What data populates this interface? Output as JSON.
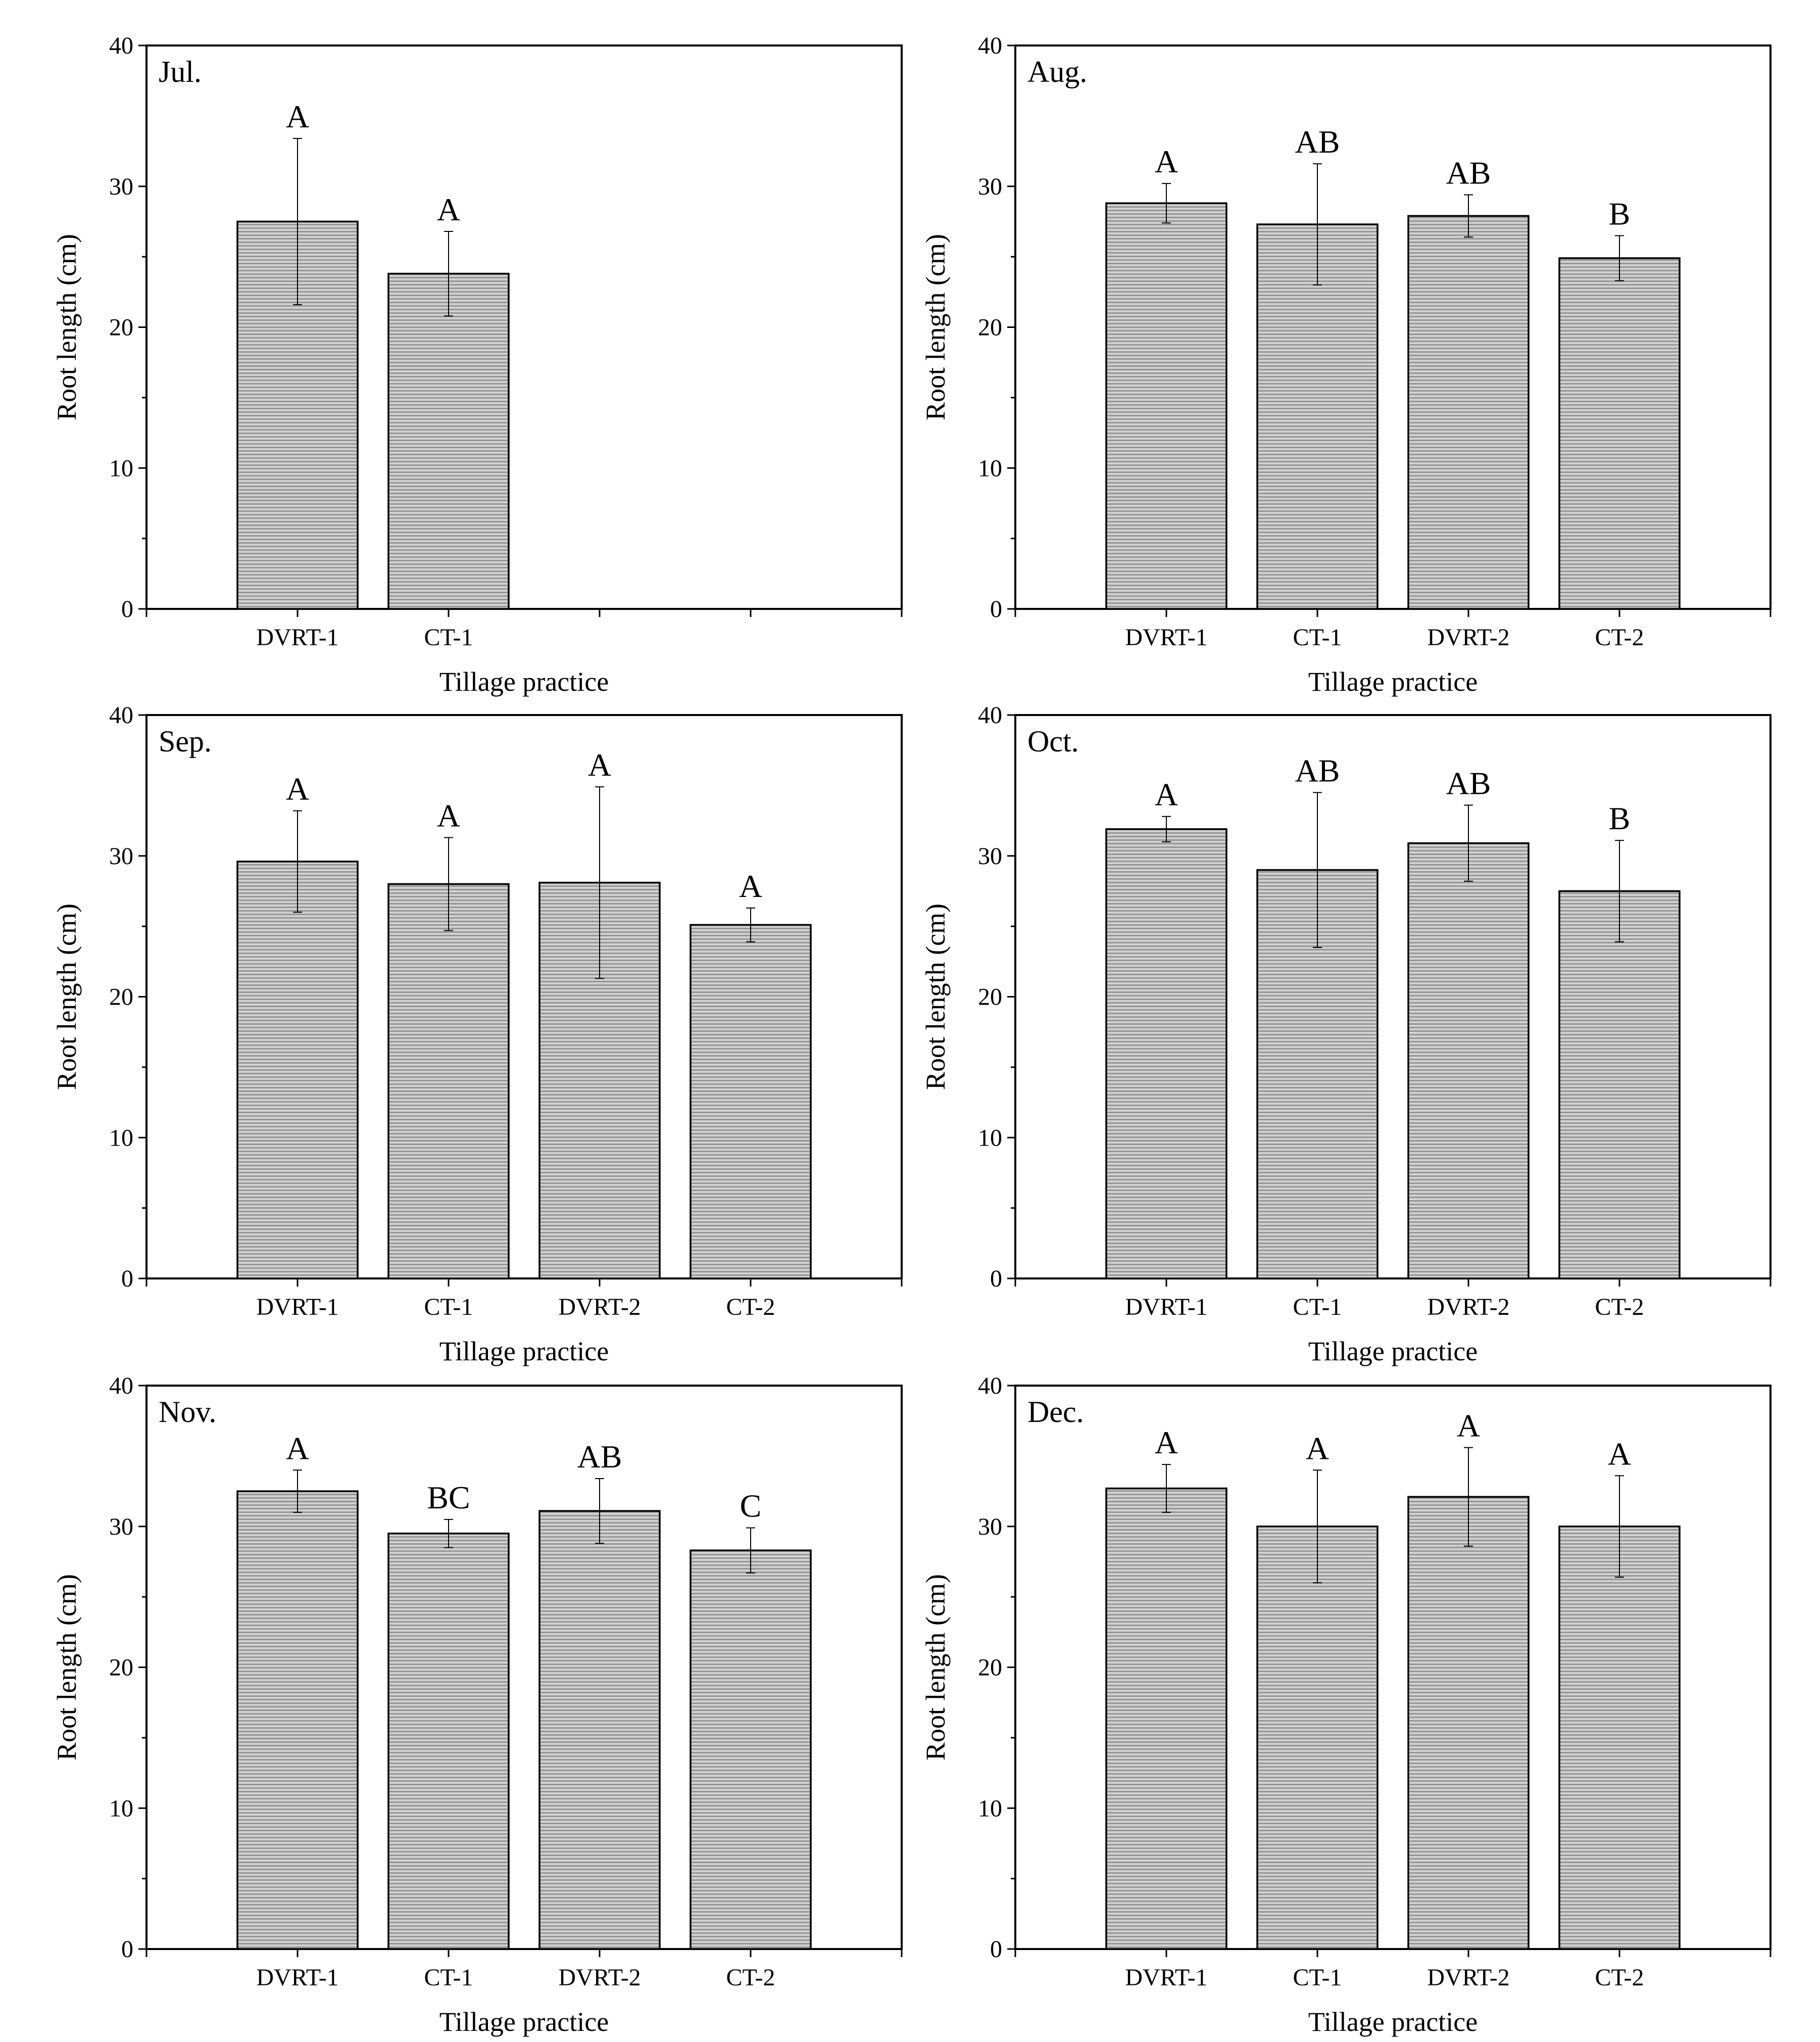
{
  "chart_data": [
    {
      "type": "bar",
      "title": "Jul.",
      "categories": [
        "DVRT-1",
        "CT-1"
      ],
      "values": [
        27.5,
        23.8
      ],
      "errors": [
        5.9,
        3.0
      ],
      "significance": [
        "A",
        "A"
      ],
      "xlabel": "Tillage practice",
      "ylabel": "Root length (cm)",
      "ylim": [
        0,
        40
      ],
      "yticks": [
        "0",
        "10",
        "20",
        "30",
        "40"
      ]
    },
    {
      "type": "bar",
      "title": "Aug.",
      "categories": [
        "DVRT-1",
        "CT-1",
        "DVRT-2",
        "CT-2"
      ],
      "values": [
        28.8,
        27.3,
        27.9,
        24.9
      ],
      "errors": [
        1.4,
        4.3,
        1.5,
        1.6
      ],
      "significance": [
        "A",
        "AB",
        "AB",
        "B"
      ],
      "xlabel": "Tillage practice",
      "ylabel": "Root length (cm)",
      "ylim": [
        0,
        40
      ],
      "yticks": [
        "0",
        "10",
        "20",
        "30",
        "40"
      ]
    },
    {
      "type": "bar",
      "title": "Sep.",
      "categories": [
        "DVRT-1",
        "CT-1",
        "DVRT-2",
        "CT-2"
      ],
      "values": [
        29.6,
        28.0,
        28.1,
        25.1
      ],
      "errors": [
        3.6,
        3.3,
        6.8,
        1.2
      ],
      "significance": [
        "A",
        "A",
        "A",
        "A"
      ],
      "xlabel": "Tillage practice",
      "ylabel": "Root length (cm)",
      "ylim": [
        0,
        40
      ],
      "yticks": [
        "0",
        "10",
        "20",
        "30",
        "40"
      ]
    },
    {
      "type": "bar",
      "title": "Oct.",
      "categories": [
        "DVRT-1",
        "CT-1",
        "DVRT-2",
        "CT-2"
      ],
      "values": [
        31.9,
        29.0,
        30.9,
        27.5
      ],
      "errors": [
        0.9,
        5.5,
        2.7,
        3.6
      ],
      "significance": [
        "A",
        "AB",
        "AB",
        "B"
      ],
      "xlabel": "Tillage practice",
      "ylabel": "Root length (cm)",
      "ylim": [
        0,
        40
      ],
      "yticks": [
        "0",
        "10",
        "20",
        "30",
        "40"
      ]
    },
    {
      "type": "bar",
      "title": "Nov.",
      "categories": [
        "DVRT-1",
        "CT-1",
        "DVRT-2",
        "CT-2"
      ],
      "values": [
        32.5,
        29.5,
        31.1,
        28.3
      ],
      "errors": [
        1.5,
        1.0,
        2.3,
        1.6
      ],
      "significance": [
        "A",
        "BC",
        "AB",
        "C"
      ],
      "xlabel": "Tillage practice",
      "ylabel": "Root length (cm)",
      "ylim": [
        0,
        40
      ],
      "yticks": [
        "0",
        "10",
        "20",
        "30",
        "40"
      ]
    },
    {
      "type": "bar",
      "title": "Dec.",
      "categories": [
        "DVRT-1",
        "CT-1",
        "DVRT-2",
        "CT-2"
      ],
      "values": [
        32.7,
        30.0,
        32.1,
        30.0
      ],
      "errors": [
        1.7,
        4.0,
        3.5,
        3.6
      ],
      "significance": [
        "A",
        "A",
        "A",
        "A"
      ],
      "xlabel": "Tillage practice",
      "ylabel": "Root length (cm)",
      "ylim": [
        0,
        40
      ],
      "yticks": [
        "0",
        "10",
        "20",
        "30",
        "40"
      ]
    }
  ]
}
